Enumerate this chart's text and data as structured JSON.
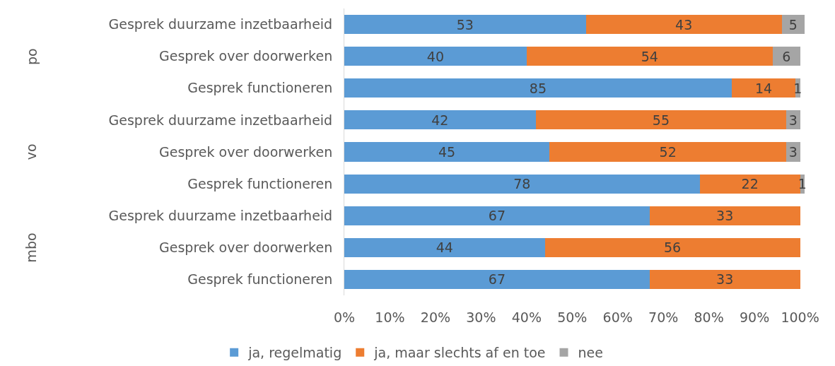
{
  "chart_data": {
    "type": "bar",
    "orientation": "horizontal",
    "stacked": true,
    "categories": [
      "Gesprek duurzame inzetbaarheid",
      "Gesprek over doorwerken",
      "Gesprek functioneren",
      "Gesprek duurzame inzetbaarheid",
      "Gesprek over doorwerken",
      "Gesprek functioneren",
      "Gesprek duurzame inzetbaarheid",
      "Gesprek over doorwerken",
      "Gesprek functioneren"
    ],
    "series": [
      {
        "name": "ja, regelmatig",
        "color": "#5b9bd5",
        "values": [
          53,
          40,
          85,
          42,
          45,
          78,
          67,
          44,
          67
        ]
      },
      {
        "name": "ja, maar slechts af en toe",
        "color": "#ed7d31",
        "values": [
          43,
          54,
          14,
          55,
          52,
          22,
          33,
          56,
          33
        ]
      },
      {
        "name": "nee",
        "color": "#a5a5a5",
        "values": [
          5,
          6,
          1,
          3,
          3,
          1,
          null,
          null,
          null
        ]
      }
    ],
    "data_labels": true,
    "xlim": [
      0,
      101
    ],
    "xticks": [
      {
        "value": 0,
        "label": "0%"
      },
      {
        "value": 10,
        "label": "10%"
      },
      {
        "value": 20,
        "label": "20%"
      },
      {
        "value": 30,
        "label": "30%"
      },
      {
        "value": 40,
        "label": "40%"
      },
      {
        "value": 50,
        "label": "50%"
      },
      {
        "value": 60,
        "label": "60%"
      },
      {
        "value": 70,
        "label": "70%"
      },
      {
        "value": 80,
        "label": "80%"
      },
      {
        "value": 90,
        "label": "90%"
      },
      {
        "value": 100,
        "label": "100%"
      }
    ],
    "annotations": [
      "po",
      "vo",
      "mbo"
    ],
    "grid": false,
    "legend": "bottom"
  }
}
